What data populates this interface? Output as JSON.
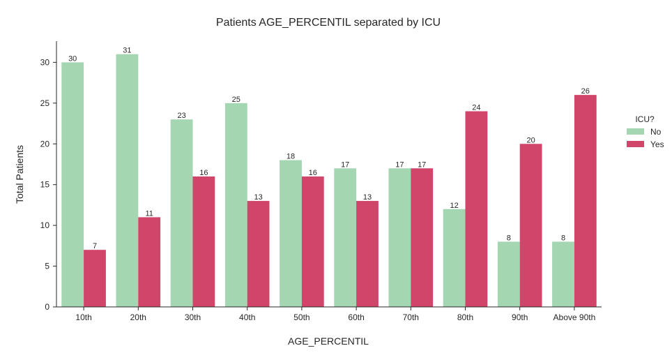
{
  "chart_data": {
    "type": "bar",
    "title": "Patients AGE_PERCENTIL separated by ICU",
    "xlabel": "AGE_PERCENTIL",
    "ylabel": "Total Patients",
    "categories": [
      "10th",
      "20th",
      "30th",
      "40th",
      "50th",
      "60th",
      "70th",
      "80th",
      "90th",
      "Above 90th"
    ],
    "series": [
      {
        "name": "No",
        "color": "#a3d6b1",
        "values": [
          30,
          31,
          23,
          25,
          18,
          17,
          17,
          12,
          8,
          8
        ]
      },
      {
        "name": "Yes",
        "color": "#d1456a",
        "values": [
          7,
          11,
          16,
          13,
          16,
          13,
          17,
          24,
          20,
          26
        ]
      }
    ],
    "ylim": [
      0,
      32.6
    ],
    "yticks": [
      0,
      5,
      10,
      15,
      20,
      25,
      30
    ],
    "legend": {
      "title": "ICU?",
      "placement": "right"
    },
    "grid": false
  }
}
